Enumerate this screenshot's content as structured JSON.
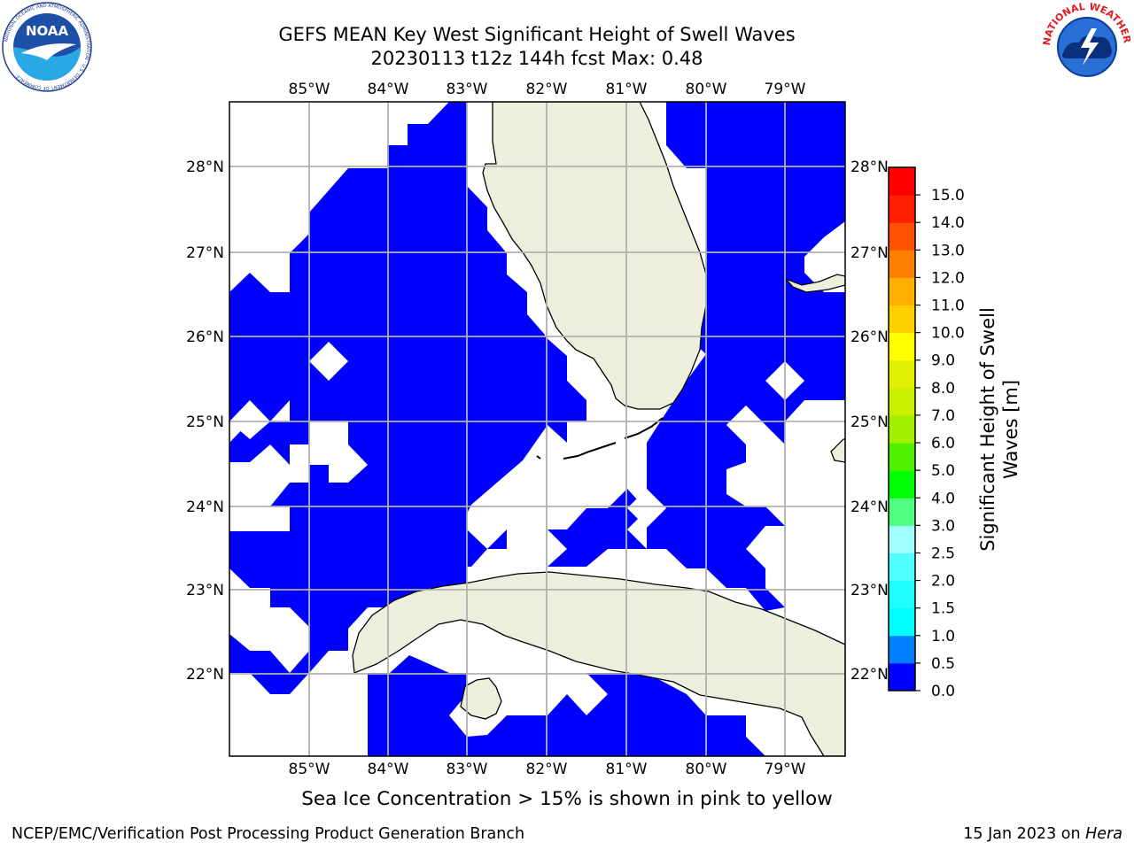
{
  "header": {
    "title_line1": "GEFS MEAN Key West Significant Height of Swell Waves",
    "title_line2": "20230113 t12z 144h fcst   Max: 0.48",
    "left_logo": {
      "text": "NOAA",
      "ring_text": "NATIONAL OCEANIC AND ATMOSPHERIC ADMINISTRATION · U.S. DEPARTMENT OF COMMERCE"
    },
    "right_logo": {
      "ring_text": "NATIONAL WEATHER SERVICE"
    }
  },
  "map": {
    "lon_labels": [
      "85°W",
      "84°W",
      "83°W",
      "82°W",
      "81°W",
      "80°W",
      "79°W"
    ],
    "lat_labels": [
      "28°N",
      "27°N",
      "26°N",
      "25°N",
      "24°N",
      "23°N",
      "22°N"
    ],
    "colors": {
      "swell_low": "#0000ff",
      "land": "#eeeedd",
      "ocean_zero": "#ffffff",
      "grid": "#b0b0b0"
    }
  },
  "colorbar": {
    "label_line1": "Significant Height of Swell",
    "label_line2": "Waves [m]",
    "ticks": [
      "0.0",
      "0.5",
      "1.0",
      "1.5",
      "2.0",
      "2.5",
      "3.0",
      "4.0",
      "5.0",
      "6.0",
      "7.0",
      "8.0",
      "9.0",
      "10.0",
      "11.0",
      "12.0",
      "13.0",
      "14.0",
      "15.0"
    ],
    "colors": [
      "#0000ff",
      "#0080ff",
      "#00ffff",
      "#20ffff",
      "#50ffff",
      "#a0ffff",
      "#50ff80",
      "#00ff00",
      "#50f000",
      "#a0f000",
      "#c8f000",
      "#e0f000",
      "#ffff00",
      "#ffd000",
      "#ffb000",
      "#ff8000",
      "#ff5000",
      "#ff2000",
      "#ff0000"
    ]
  },
  "footer": {
    "subtitle": "Sea Ice Concentration > 15% is shown in pink to yellow",
    "left": "NCEP/EMC/Verification Post Processing Product Generation Branch",
    "right_date": "15 Jan 2023 on ",
    "right_host": "Hera"
  }
}
